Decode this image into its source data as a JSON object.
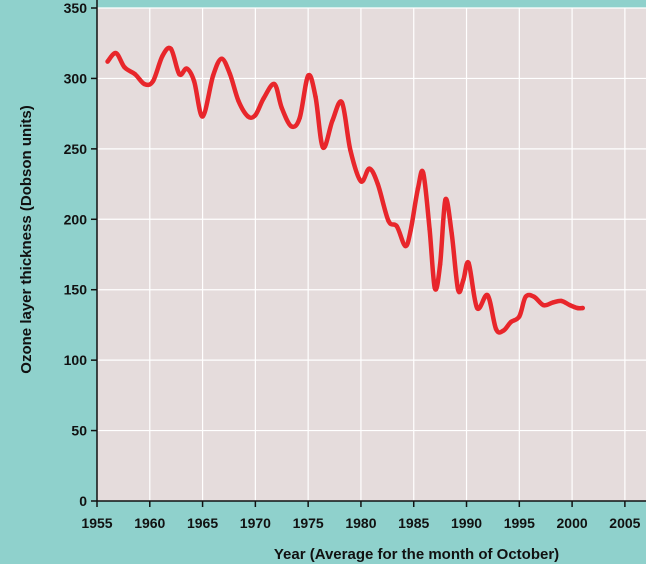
{
  "chart_data": {
    "type": "line",
    "title": "",
    "xlabel": "Year (Average for the month of October)",
    "ylabel": "Ozone layer thickness (Dobson units)",
    "xlim": [
      1955,
      2007
    ],
    "ylim": [
      0,
      350
    ],
    "xticks": [
      1955,
      1960,
      1965,
      1970,
      1975,
      1980,
      1985,
      1990,
      1995,
      2000,
      2005
    ],
    "yticks": [
      0,
      50,
      100,
      150,
      200,
      250,
      300,
      350
    ],
    "grid": "both",
    "legend": "none",
    "colors": {
      "plot_background": "#e5dcdc",
      "figure_background": "#8fd1cc",
      "grid": "#ffffff",
      "line": "#e8262b"
    },
    "series": [
      {
        "x": [
          1956.0,
          1956.8,
          1957.6,
          1958.6,
          1959.5,
          1960.3,
          1961.2,
          1962.0,
          1962.8,
          1963.5,
          1964.2,
          1965.0,
          1966.0,
          1966.8,
          1967.6,
          1968.4,
          1969.3,
          1970.0,
          1970.8,
          1971.8,
          1972.5,
          1973.4,
          1974.2,
          1975.0,
          1975.7,
          1976.4,
          1977.3,
          1978.2,
          1979.0,
          1980.0,
          1980.8,
          1981.6,
          1982.6,
          1983.4,
          1984.2,
          1984.7,
          1985.4,
          1985.9,
          1986.5,
          1987.0,
          1987.5,
          1988.0,
          1988.6,
          1989.2,
          1989.7,
          1990.2,
          1991.0,
          1992.0,
          1992.8,
          1993.5,
          1994.2,
          1995.0,
          1995.6,
          1996.4,
          1997.3,
          1998.2,
          1999.0,
          1999.8,
          2000.5,
          2001.0
        ],
        "values": [
          312,
          318,
          308,
          303,
          296,
          298,
          316,
          321,
          303,
          307,
          298,
          273,
          302,
          314,
          303,
          284,
          273,
          274,
          286,
          296,
          279,
          266,
          272,
          302,
          287,
          251,
          270,
          283,
          249,
          227,
          236,
          225,
          199,
          195,
          181,
          192,
          222,
          233,
          193,
          151,
          168,
          214,
          190,
          150,
          157,
          169,
          137,
          146,
          122,
          121,
          127,
          131,
          145,
          145,
          139,
          141,
          142,
          139,
          137,
          137
        ]
      }
    ]
  }
}
